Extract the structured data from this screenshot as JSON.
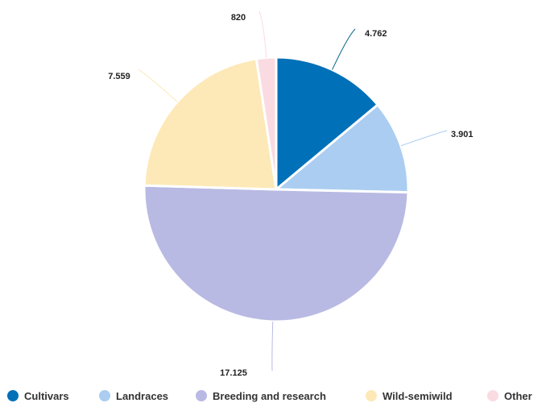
{
  "chart_data": {
    "type": "pie",
    "title": "",
    "series": [
      {
        "name": "Cultivars",
        "value": 4762,
        "label": "4.762",
        "color": "#0070b8"
      },
      {
        "name": "Landraces",
        "value": 3901,
        "label": "3.901",
        "color": "#abcdf1"
      },
      {
        "name": "Breeding and research",
        "value": 17125,
        "label": "17.125",
        "color": "#b9bae3"
      },
      {
        "name": "Wild-semiwild",
        "value": 7559,
        "label": "7.559",
        "color": "#fde9b7"
      },
      {
        "name": "Other",
        "value": 820,
        "label": "820",
        "color": "#fadbe2"
      }
    ],
    "start_angle_deg": 0,
    "direction": "clockwise",
    "legend": "bottom",
    "data_labels": "outside-with-connectors"
  }
}
